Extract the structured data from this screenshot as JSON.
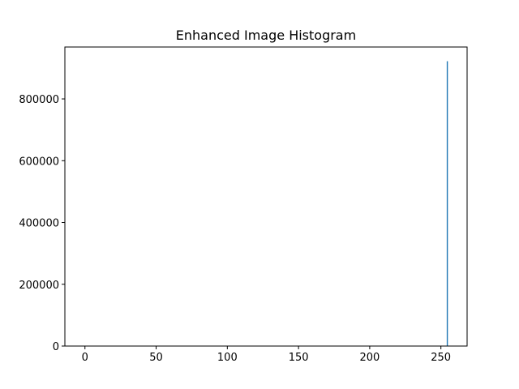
{
  "chart_data": {
    "type": "bar",
    "title": "Enhanced Image Histogram",
    "xlabel": "",
    "ylabel": "",
    "xlim": [
      -14.1,
      268.4
    ],
    "ylim": [
      0,
      968000
    ],
    "x_ticks": [
      0,
      50,
      100,
      150,
      200,
      250
    ],
    "y_ticks": [
      0,
      200000,
      400000,
      600000,
      800000
    ],
    "bar_color": "#1f77b4",
    "bins": [
      {
        "x": 254.5,
        "value": 922000
      }
    ],
    "grid": false,
    "legend": "none"
  }
}
